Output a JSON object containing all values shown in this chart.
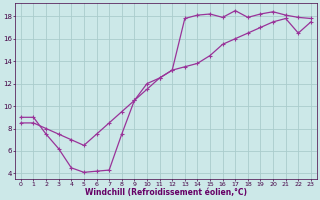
{
  "line1_x": [
    0,
    1,
    2,
    3,
    4,
    5,
    6,
    7,
    8,
    9,
    10,
    11,
    12,
    13,
    14,
    15,
    16,
    17,
    18,
    19,
    20,
    21,
    22,
    23
  ],
  "line1_y": [
    9.0,
    9.0,
    7.5,
    6.2,
    4.5,
    4.1,
    4.2,
    4.3,
    7.5,
    10.5,
    12.0,
    12.5,
    13.2,
    17.8,
    18.1,
    18.2,
    17.9,
    18.5,
    17.9,
    18.2,
    18.4,
    18.1,
    17.9,
    17.8
  ],
  "line2_x": [
    0,
    1,
    2,
    3,
    4,
    5,
    6,
    7,
    8,
    9,
    10,
    11,
    12,
    13,
    14,
    15,
    16,
    17,
    18,
    19,
    20,
    21,
    22,
    23
  ],
  "line2_y": [
    8.5,
    8.5,
    8.0,
    7.5,
    7.0,
    6.5,
    7.5,
    8.5,
    9.5,
    10.5,
    11.5,
    12.5,
    13.2,
    13.5,
    13.8,
    14.5,
    15.5,
    16.0,
    16.5,
    17.0,
    17.5,
    17.8,
    16.5,
    17.5
  ],
  "line_color": "#993399",
  "marker": "+",
  "markersize": 3,
  "linewidth": 0.9,
  "markeredgewidth": 0.8,
  "bg_color": "#cce8e8",
  "grid_color": "#aacccc",
  "xlabel": "Windchill (Refroidissement éolien,°C)",
  "xlabel_color": "#660066",
  "tick_color": "#440044",
  "xlim": [
    -0.5,
    23.5
  ],
  "ylim": [
    3.5,
    19.2
  ],
  "yticks": [
    4,
    6,
    8,
    10,
    12,
    14,
    16,
    18
  ],
  "xticks": [
    0,
    1,
    2,
    3,
    4,
    5,
    6,
    7,
    8,
    9,
    10,
    11,
    12,
    13,
    14,
    15,
    16,
    17,
    18,
    19,
    20,
    21,
    22,
    23
  ],
  "tick_fontsize": 4.5,
  "xlabel_fontsize": 5.5,
  "ylabel_fontsize": 5.5,
  "ytick_fontsize": 5.0
}
